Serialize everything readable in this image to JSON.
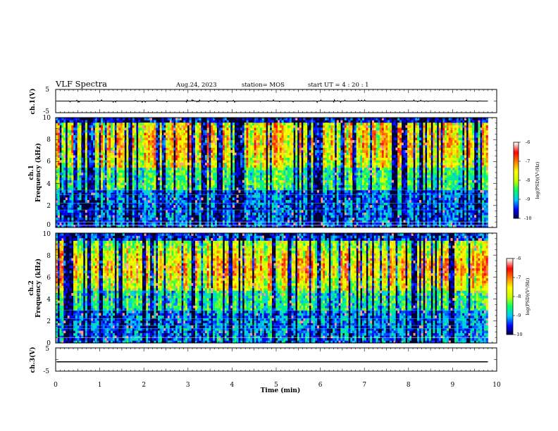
{
  "header": {
    "title": "VLF Spectra",
    "date": "Aug.24, 2023",
    "station": "station= MOS",
    "start_ut": "start UT =   4 : 20 : 1"
  },
  "chart_data": [
    {
      "id": "ch1-waveform",
      "type": "line",
      "ylabel": "ch.1(V)",
      "ylim": [
        -5,
        5
      ],
      "yticks": [
        "5",
        "-5"
      ],
      "xlim": [
        0,
        10
      ],
      "baseline": 0,
      "data_extent_min": 9.8,
      "trace_color": "#000000"
    },
    {
      "id": "ch1-spectrogram",
      "type": "heatmap",
      "ylabel_line1": "ch.1",
      "ylabel_line2": "Frequency (kHz)",
      "ylim": [
        0,
        10
      ],
      "yticks": [
        "0",
        "2",
        "4",
        "6",
        "8",
        "10"
      ],
      "xlim": [
        0,
        10
      ],
      "data_extent_min": 9.8,
      "colorbar": {
        "label": "log(PSD)(V²/Hz)",
        "range": [
          -10,
          -6
        ],
        "ticks": [
          "-6",
          "-7",
          "-8",
          "-9",
          "-10"
        ]
      },
      "narrowband_lines_khz": [
        0.2,
        0.5,
        1.6,
        2.2,
        3.0,
        3.4
      ]
    },
    {
      "id": "ch2-spectrogram",
      "type": "heatmap",
      "ylabel_line1": "ch.2",
      "ylabel_line2": "Frequency (kHz)",
      "ylim": [
        0,
        10
      ],
      "yticks": [
        "0",
        "2",
        "4",
        "6",
        "8",
        "10"
      ],
      "xlim": [
        0,
        10
      ],
      "data_extent_min": 9.8,
      "colorbar": {
        "label": "log(PSD)(V²/Hz)",
        "range": [
          -10,
          -6
        ],
        "ticks": [
          "-6",
          "-7",
          "-8",
          "-9",
          "-10"
        ]
      },
      "narrowband_lines_khz": [
        0.5,
        1.3,
        1.6,
        2.2,
        3.0
      ]
    },
    {
      "id": "ch3-waveform",
      "type": "line",
      "ylabel": "ch.3(V)",
      "ylim": [
        -5,
        5
      ],
      "yticks": [
        "5",
        "-5"
      ],
      "xlim": [
        0,
        10
      ],
      "baseline": -1,
      "data_extent_min": 9.8,
      "trace_color": "#000000"
    }
  ],
  "xaxis": {
    "label": "Time  (min)",
    "ticks": [
      "0",
      "1",
      "2",
      "3",
      "4",
      "5",
      "6",
      "7",
      "8",
      "9",
      "10"
    ]
  },
  "colormap": [
    "#000033",
    "#0000ff",
    "#00c8ff",
    "#00ff64",
    "#c8ff00",
    "#ffff00",
    "#ff8000",
    "#ff0000",
    "#ffffff"
  ]
}
